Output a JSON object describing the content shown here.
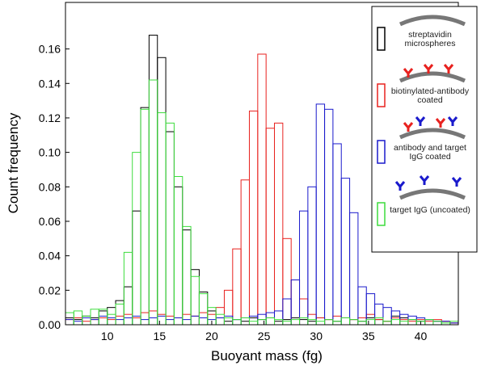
{
  "chart_data": {
    "type": "histogram",
    "x_label": "Buoyant mass (fg)",
    "y_label": "Count frequency",
    "bins": [
      6,
      6.8,
      7.6,
      8.4,
      9.2,
      10,
      10.8,
      11.6,
      12.4,
      13.2,
      14,
      14.8,
      15.6,
      16.4,
      17.2,
      18,
      18.8,
      19.6,
      20.4,
      21.2,
      22,
      22.8,
      23.6,
      24.4,
      25.2,
      26,
      26.8,
      27.6,
      28.4,
      29.2,
      30,
      30.8,
      31.6,
      32.4,
      33.2,
      34,
      34.8,
      35.6,
      36.4,
      37.2,
      38,
      38.8,
      39.6,
      40.4,
      41.2,
      42,
      42.8,
      43.6
    ],
    "series": [
      {
        "name": "streptavidin microspheres",
        "color": "#000000",
        "values": [
          0.004,
          0.003,
          0.005,
          0.004,
          0.008,
          0.01,
          0.014,
          0.022,
          0.066,
          0.126,
          0.168,
          0.155,
          0.112,
          0.08,
          0.055,
          0.032,
          0.019,
          0.008,
          0.004,
          0.002,
          0.003,
          0.002,
          0.004,
          0.003,
          0.004,
          0.002,
          0.003,
          0.004,
          0.003,
          0.002,
          0.004,
          0.003,
          0.002,
          0.004,
          0.003,
          0.002,
          0.004,
          0.003,
          0.002,
          0.005,
          0.004,
          0.003,
          0.002,
          0.003,
          0.002,
          0.002,
          0.001
        ]
      },
      {
        "name": "biotinylated-antibody coated",
        "color": "#e8221f",
        "values": [
          0.003,
          0.004,
          0.002,
          0.003,
          0.004,
          0.003,
          0.005,
          0.006,
          0.004,
          0.007,
          0.008,
          0.006,
          0.005,
          0.004,
          0.006,
          0.005,
          0.007,
          0.006,
          0.01,
          0.02,
          0.044,
          0.084,
          0.124,
          0.157,
          0.114,
          0.117,
          0.05,
          0.026,
          0.015,
          0.006,
          0.004,
          0.003,
          0.005,
          0.004,
          0.003,
          0.004,
          0.006,
          0.003,
          0.002,
          0.004,
          0.003,
          0.002,
          0.003,
          0.002,
          0.003,
          0.002,
          0.001
        ]
      },
      {
        "name": "antibody and target IgG coated",
        "color": "#1a1acc",
        "values": [
          0.003,
          0.002,
          0.004,
          0.003,
          0.005,
          0.004,
          0.003,
          0.004,
          0.005,
          0.003,
          0.004,
          0.005,
          0.003,
          0.004,
          0.003,
          0.005,
          0.004,
          0.003,
          0.004,
          0.005,
          0.003,
          0.004,
          0.005,
          0.006,
          0.007,
          0.008,
          0.015,
          0.026,
          0.066,
          0.08,
          0.128,
          0.125,
          0.105,
          0.085,
          0.065,
          0.022,
          0.018,
          0.012,
          0.01,
          0.008,
          0.006,
          0.005,
          0.004,
          0.003,
          0.002,
          0.002,
          0.001
        ]
      },
      {
        "name": "target IgG (uncoated)",
        "color": "#3ddc3d",
        "values": [
          0.007,
          0.008,
          0.005,
          0.009,
          0.009,
          0.006,
          0.012,
          0.042,
          0.1,
          0.125,
          0.142,
          0.123,
          0.117,
          0.086,
          0.057,
          0.028,
          0.018,
          0.01,
          0.006,
          0.004,
          0.003,
          0.004,
          0.002,
          0.003,
          0.004,
          0.003,
          0.002,
          0.003,
          0.004,
          0.003,
          0.002,
          0.003,
          0.002,
          0.004,
          0.003,
          0.002,
          0.003,
          0.004,
          0.002,
          0.003,
          0.002,
          0.003,
          0.002,
          0.003,
          0.002,
          0.001,
          0.002
        ]
      }
    ],
    "xlim": [
      6,
      43.6
    ],
    "ylim": [
      0,
      0.187
    ],
    "xticks": [
      10,
      15,
      20,
      25,
      30,
      35,
      40
    ],
    "yticks": [
      {
        "value": 0,
        "label": "0.00"
      },
      {
        "value": 0.02,
        "label": "0.02"
      },
      {
        "value": 0.04,
        "label": "0.04"
      },
      {
        "value": 0.06,
        "label": "0.06"
      },
      {
        "value": 0.08,
        "label": "0.08"
      },
      {
        "value": 0.1,
        "label": "0.10"
      },
      {
        "value": 0.12,
        "label": "0.12"
      },
      {
        "value": 0.14,
        "label": "0.14"
      },
      {
        "value": 0.16,
        "label": "0.16"
      }
    ],
    "grid": false
  }
}
